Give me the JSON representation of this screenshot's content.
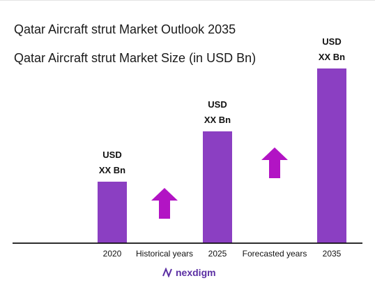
{
  "title": "Qatar Aircraft strut Market Outlook 2035",
  "subtitle": "Qatar Aircraft strut Market Size (in USD Bn)",
  "brand": {
    "name": "nexdigm",
    "logo_icon": "nexdigm-logo-icon"
  },
  "colors": {
    "bar": "#8b3fc2",
    "arrow": "#b214c4",
    "axis": "#111111"
  },
  "chart_data": {
    "type": "bar",
    "categories": [
      "2020",
      "2025",
      "2035"
    ],
    "values": [
      88,
      160,
      250
    ],
    "value_labels": [
      [
        "USD",
        "XX Bn"
      ],
      [
        "USD",
        "XX Bn"
      ],
      [
        "USD",
        "XX Bn"
      ]
    ],
    "period_labels": [
      "Historical years",
      "Forecasted years"
    ],
    "period_arrows": [
      "up-arrow-icon",
      "up-arrow-icon"
    ],
    "ylim": [
      0,
      260
    ],
    "grid": false
  }
}
